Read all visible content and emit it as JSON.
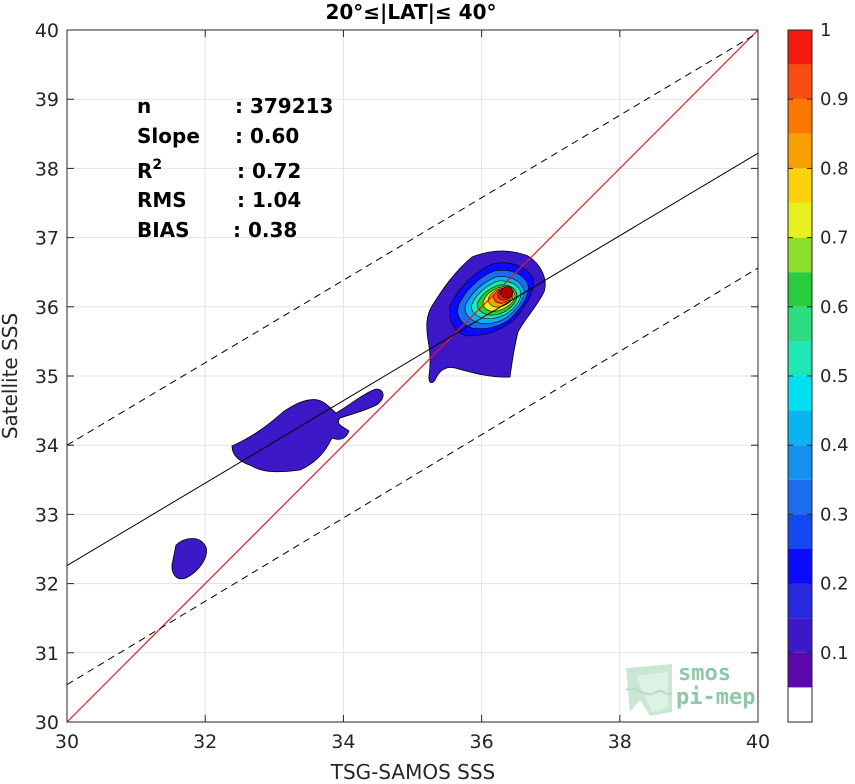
{
  "chart_data": {
    "type": "contour",
    "title": "20°≤|LAT|≤ 40°",
    "xlabel": "TSG-SAMOS SSS",
    "ylabel": "Satellite SSS",
    "xlim": [
      30,
      40
    ],
    "ylim": [
      30,
      40
    ],
    "xticks": [
      "30",
      "32",
      "34",
      "36",
      "38",
      "40"
    ],
    "yticks": [
      "30",
      "31",
      "32",
      "33",
      "34",
      "35",
      "36",
      "37",
      "38",
      "39",
      "40"
    ],
    "grid": true,
    "stats": [
      {
        "label": "n",
        "value": ": 379213"
      },
      {
        "label": "Slope",
        "value": ": 0.60"
      },
      {
        "label": "R",
        "sup": "2",
        "value": ": 0.72"
      },
      {
        "label": "RMS",
        "value": ": 1.04"
      },
      {
        "label": "BIAS",
        "value": ": 0.38"
      }
    ],
    "identity_line": {
      "color": "#e31a1c",
      "from": [
        30,
        30
      ],
      "to": [
        40,
        40
      ]
    },
    "regression_line": {
      "color": "#000000",
      "from": [
        30,
        32.26
      ],
      "to": [
        40,
        38.22
      ]
    },
    "regression_bounds": [
      {
        "from": [
          30,
          34.0
        ],
        "to": [
          40,
          39.96
        ]
      },
      {
        "from": [
          30,
          30.54
        ],
        "to": [
          40,
          36.56
        ]
      }
    ],
    "density_peak": {
      "x": 36.3,
      "y": 36.2,
      "value": 1.0
    },
    "colorbar": {
      "ticks": [
        "0.1",
        "0.2",
        "0.3",
        "0.4",
        "0.5",
        "0.6",
        "0.7",
        "0.8",
        "0.9",
        "1"
      ],
      "levels": [
        0,
        0.05,
        0.1,
        0.15,
        0.2,
        0.25,
        0.3,
        0.35,
        0.4,
        0.45,
        0.5,
        0.55,
        0.6,
        0.65,
        0.7,
        0.75,
        0.8,
        0.85,
        0.9,
        0.95,
        1.0
      ],
      "colors": [
        "#ffffff",
        "#5a08ab",
        "#3c18c8",
        "#2828dc",
        "#0a0aff",
        "#1448f0",
        "#1c6cf0",
        "#1490f0",
        "#0ab4f0",
        "#00e0f0",
        "#1ee6b4",
        "#2edc80",
        "#28cc3c",
        "#8ce02c",
        "#e8f020",
        "#fcd20a",
        "#f8a000",
        "#fa7800",
        "#f84e10",
        "#f41c0c",
        "#b40000",
        "#7a0000"
      ]
    }
  },
  "logo": {
    "line1": "smos",
    "line2": "pi-mep"
  }
}
